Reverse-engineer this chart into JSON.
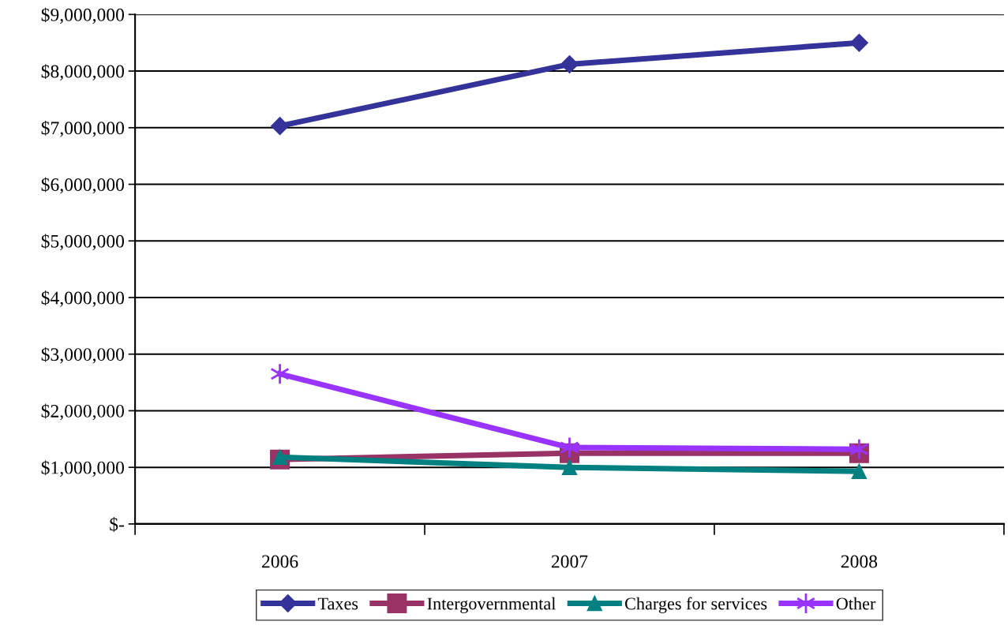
{
  "chart_data": {
    "type": "line",
    "categories": [
      "2006",
      "2007",
      "2008"
    ],
    "series": [
      {
        "name": "Taxes",
        "color": "#333399",
        "marker": "diamond",
        "values": [
          7030000,
          8120000,
          8500000
        ]
      },
      {
        "name": "Intergovernmental",
        "color": "#993366",
        "marker": "square",
        "values": [
          1140000,
          1250000,
          1250000
        ]
      },
      {
        "name": "Charges for services",
        "color": "#008080",
        "marker": "triangle",
        "values": [
          1180000,
          1000000,
          930000
        ]
      },
      {
        "name": "Other",
        "color": "#9933ff",
        "marker": "cross",
        "values": [
          2650000,
          1350000,
          1320000
        ]
      }
    ],
    "ylim": [
      0,
      9000000
    ],
    "yticks": [
      {
        "value": 0,
        "label": "$-"
      },
      {
        "value": 1000000,
        "label": "$1,000,000"
      },
      {
        "value": 2000000,
        "label": "$2,000,000"
      },
      {
        "value": 3000000,
        "label": "$3,000,000"
      },
      {
        "value": 4000000,
        "label": "$4,000,000"
      },
      {
        "value": 5000000,
        "label": "$5,000,000"
      },
      {
        "value": 6000000,
        "label": "$6,000,000"
      },
      {
        "value": 7000000,
        "label": "$7,000,000"
      },
      {
        "value": 8000000,
        "label": "$8,000,000"
      },
      {
        "value": 9000000,
        "label": "$9,000,000"
      }
    ],
    "grid": "y",
    "legend": "bottom"
  }
}
